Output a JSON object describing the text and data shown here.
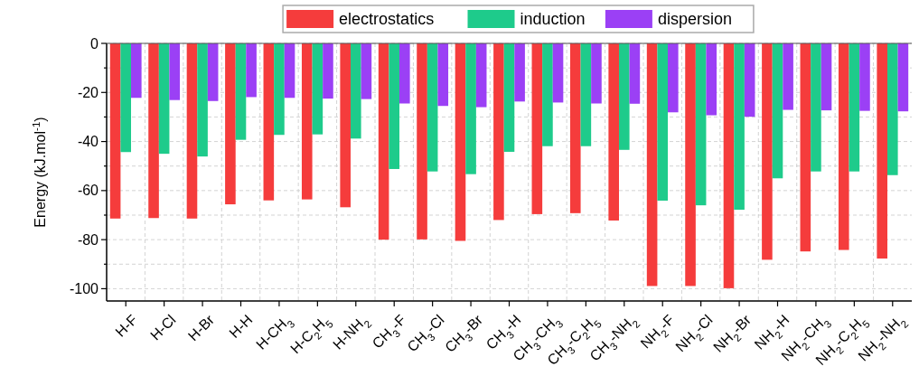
{
  "chart_data": {
    "type": "bar",
    "ylabel": "Energy (kJ.mol$^{-1}$)",
    "categories": [
      "H-F",
      "H-Cl",
      "H-Br",
      "H-H",
      "H-CH$_{3}$",
      "H-C$_{2}$H$_{5}$",
      "H-NH$_{2}$",
      "CH$_{3}$-F",
      "CH$_{3}$-Cl",
      "CH$_{3}$-Br",
      "CH$_{3}$-H",
      "CH$_{3}$-CH$_{3}$",
      "CH$_{3}$-C$_{2}$H$_{5}$",
      "CH$_{3}$-NH$_{2}$",
      "NH$_{2}$-F",
      "NH$_{2}$-Cl",
      "NH$_{2}$-Br",
      "NH$_{2}$-H",
      "NH$_{2}$-CH$_{3}$",
      "NH$_{2}$-C$_{2}$H$_{5}$",
      "NH$_{2}$-NH$_{2}$"
    ],
    "series": [
      {
        "name": "electrostatics",
        "color": "#f53c3c",
        "values": [
          -71.4,
          -71.2,
          -71.4,
          -65.6,
          -64.0,
          -63.6,
          -66.8,
          -80.0,
          -79.9,
          -80.5,
          -72.0,
          -69.6,
          -69.2,
          -72.2,
          -98.9,
          -98.9,
          -99.8,
          -88.2,
          -84.8,
          -84.2,
          -87.7
        ]
      },
      {
        "name": "induction",
        "color": "#1ecb8b",
        "values": [
          -44.3,
          -45.0,
          -46.1,
          -39.3,
          -37.3,
          -37.1,
          -38.8,
          -51.2,
          -52.2,
          -53.3,
          -44.2,
          -41.9,
          -41.9,
          -43.4,
          -64.1,
          -66.0,
          -67.8,
          -55.0,
          -52.2,
          -52.2,
          -53.7
        ]
      },
      {
        "name": "dispersion",
        "color": "#9b40f5",
        "values": [
          -22.2,
          -23.1,
          -23.5,
          -21.9,
          -22.2,
          -22.5,
          -22.7,
          -24.5,
          -25.5,
          -26.0,
          -23.7,
          -24.1,
          -24.5,
          -24.6,
          -28.1,
          -29.3,
          -29.9,
          -27.1,
          -27.3,
          -27.5,
          -27.7
        ]
      }
    ],
    "ylim": [
      -105,
      0
    ],
    "yticks": [
      0,
      {
        "value": -10,
        "label": null
      },
      -20,
      {
        "value": -30,
        "label": null
      },
      -40,
      {
        "value": -50,
        "label": null
      },
      -60,
      {
        "value": -70,
        "label": null
      },
      -80,
      {
        "value": -90,
        "label": null
      },
      -100
    ],
    "grid": true,
    "legend": "top"
  }
}
